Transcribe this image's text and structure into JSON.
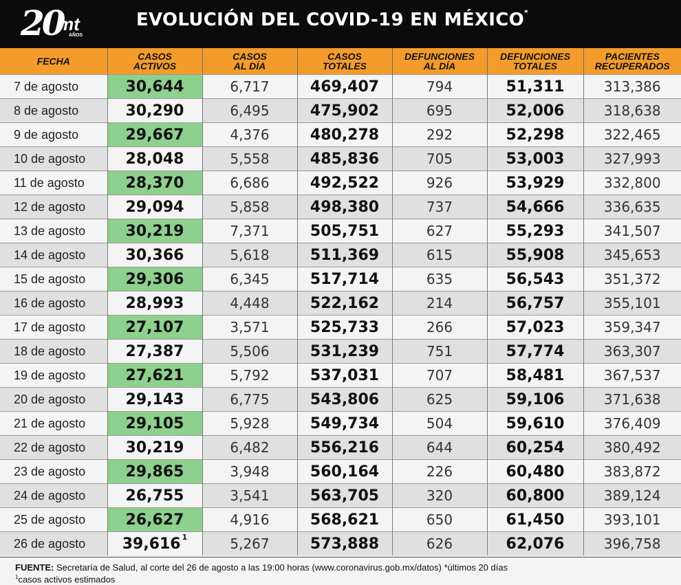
{
  "header": {
    "logo_number": "20",
    "logo_brand": "mt",
    "logo_sub": "AÑOS",
    "title": "EVOLUCIÓN DEL COVID-19 EN MÉXICO",
    "title_mark": "*"
  },
  "table": {
    "columns": [
      [
        "FECHA"
      ],
      [
        "CASOS",
        "ACTIVOS"
      ],
      [
        "CASOS",
        "AL DÍA"
      ],
      [
        "CASOS",
        "TOTALES"
      ],
      [
        "DEFUNCIONES",
        "AL DÍA"
      ],
      [
        "DEFUNCIONES",
        "TOTALES"
      ],
      [
        "PACIENTES",
        "RECUPERADOS"
      ]
    ],
    "rows": [
      [
        "7 de agosto",
        "30,644",
        "6,717",
        "469,407",
        "794",
        "51,311",
        "313,386"
      ],
      [
        "8 de agosto",
        "30,290",
        "6,495",
        "475,902",
        "695",
        "52,006",
        "318,638"
      ],
      [
        "9 de agosto",
        "29,667",
        "4,376",
        "480,278",
        "292",
        "52,298",
        "322,465"
      ],
      [
        "10 de agosto",
        "28,048",
        "5,558",
        "485,836",
        "705",
        "53,003",
        "327,993"
      ],
      [
        "11 de agosto",
        "28,370",
        "6,686",
        "492,522",
        "926",
        "53,929",
        "332,800"
      ],
      [
        "12 de agosto",
        "29,094",
        "5,858",
        "498,380",
        "737",
        "54,666",
        "336,635"
      ],
      [
        "13 de agosto",
        "30,219",
        "7,371",
        "505,751",
        "627",
        "55,293",
        "341,507"
      ],
      [
        "14 de agosto",
        "30,366",
        "5,618",
        "511,369",
        "615",
        "55,908",
        "345,653"
      ],
      [
        "15 de agosto",
        "29,306",
        "6,345",
        "517,714",
        "635",
        "56,543",
        "351,372"
      ],
      [
        "16 de agosto",
        "28,993",
        "4,448",
        "522,162",
        "214",
        "56,757",
        "355,101"
      ],
      [
        "17 de agosto",
        "27,107",
        "3,571",
        "525,733",
        "266",
        "57,023",
        "359,347"
      ],
      [
        "18 de agosto",
        "27,387",
        "5,506",
        "531,239",
        "751",
        "57,774",
        "363,307"
      ],
      [
        "19 de agosto",
        "27,621",
        "5,792",
        "537,031",
        "707",
        "58,481",
        "367,537"
      ],
      [
        "20 de agosto",
        "29,143",
        "6,775",
        "543,806",
        "625",
        "59,106",
        "371,638"
      ],
      [
        "21 de agosto",
        "29,105",
        "5,928",
        "549,734",
        "504",
        "59,610",
        "376,409"
      ],
      [
        "22 de agosto",
        "30,219",
        "6,482",
        "556,216",
        "644",
        "60,254",
        "380,492"
      ],
      [
        "23 de agosto",
        "29,865",
        "3,948",
        "560,164",
        "226",
        "60,480",
        "383,872"
      ],
      [
        "24 de agosto",
        "26,755",
        "3,541",
        "563,705",
        "320",
        "60,800",
        "389,124"
      ],
      [
        "25 de agosto",
        "26,627",
        "4,916",
        "568,621",
        "650",
        "61,450",
        "393,101"
      ],
      [
        "26 de agosto",
        "39,616",
        "5,267",
        "573,888",
        "626",
        "62,076",
        "396,758"
      ]
    ],
    "last_row_note": "1"
  },
  "footer": {
    "source_label": "FUENTE:",
    "source_text": " Secretaría de Salud, al corte del 26 de agosto a las 19:00 horas (www.coronavirus.gob.mx/datos) *últimos 20 días",
    "note_mark": "1",
    "note_text": "casos activos estimados"
  },
  "colors": {
    "header_bg": "#0b0b0b",
    "column_header_bg": "#f39c2c",
    "highlight_green": "#8ed08e"
  }
}
